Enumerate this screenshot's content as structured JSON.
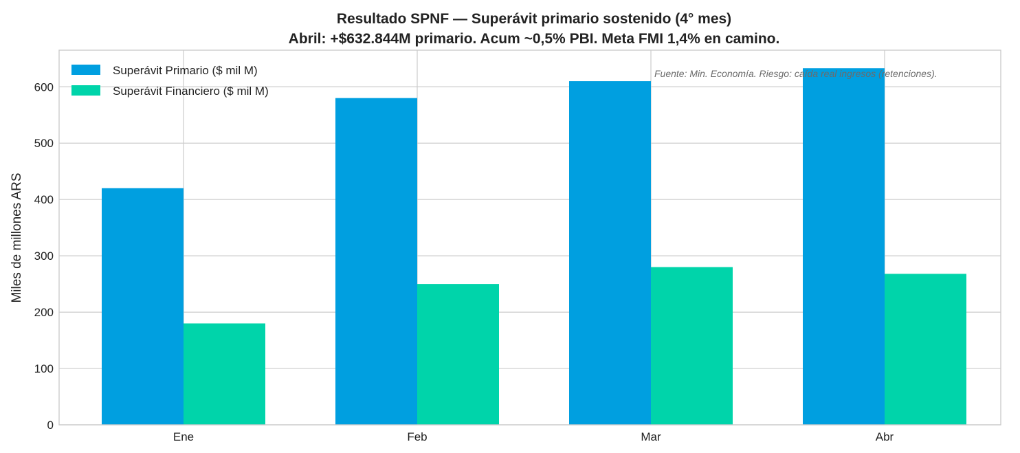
{
  "chart_data": {
    "type": "bar",
    "title": "Resultado SPNF — Superávit primario sostenido (4° mes)",
    "subtitle": "Abril: +$632.844M primario. Acum ~0,5% PBI. Meta FMI 1,4% en camino.",
    "xlabel": "",
    "ylabel": "Miles de millones ARS",
    "categories": [
      "Ene",
      "Feb",
      "Mar",
      "Abr"
    ],
    "series": [
      {
        "name": "Superávit Primario ($ mil M)",
        "color": "#009fe0",
        "values": [
          420,
          580,
          610,
          633
        ]
      },
      {
        "name": "Superávit Financiero ($ mil M)",
        "color": "#00d4aa",
        "values": [
          180,
          250,
          280,
          268
        ]
      }
    ],
    "ylim": [
      0,
      665
    ],
    "yticks": [
      0,
      100,
      200,
      300,
      400,
      500,
      600
    ],
    "grid": true,
    "legend_position": "top-left",
    "annotation": "Fuente: Min. Economía. Riesgo: caída real ingresos (retenciones)."
  }
}
